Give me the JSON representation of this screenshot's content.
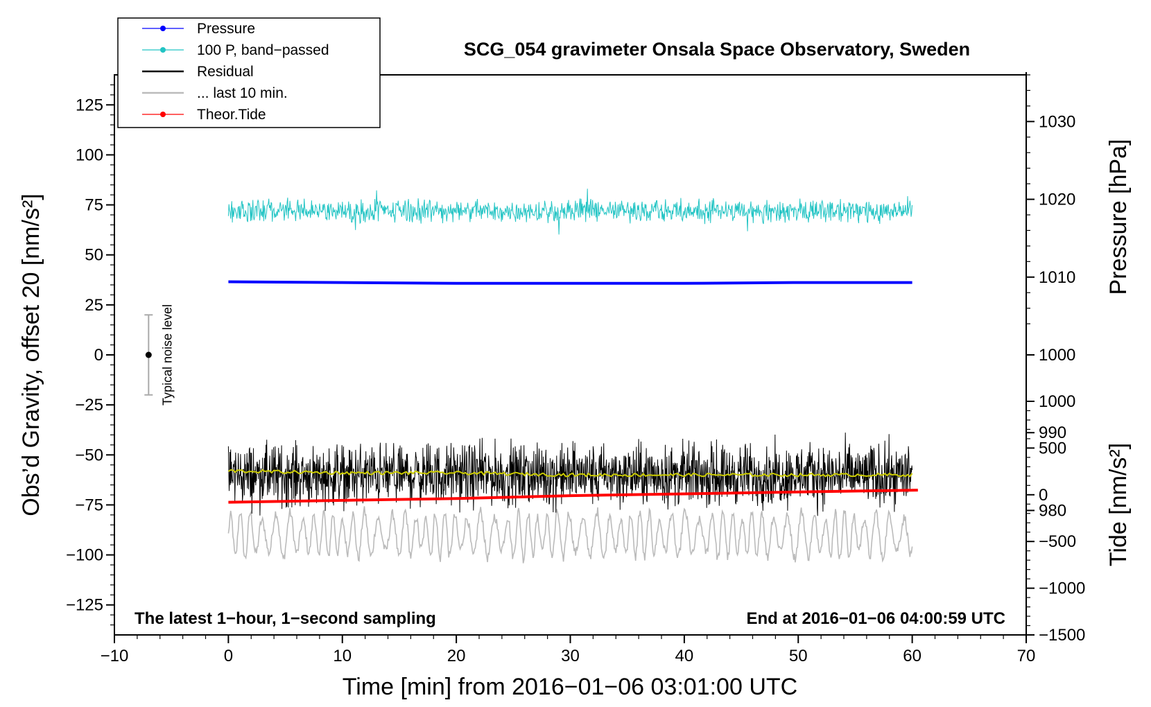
{
  "chart_data": {
    "type": "line",
    "title": "SCG_054 gravimeter Onsala Space Observatory, Sweden",
    "xlabel": "Time [min] from 2016−01−06 03:01:00 UTC",
    "ylabel_left": "Obs’d Gravity, offset 20 [nm/s²]",
    "ylabel_right_pressure": "Pressure [hPa]",
    "ylabel_right_tide": "Tide [nm/s²]",
    "xlim": [
      -10,
      70
    ],
    "ylim_left": [
      -140,
      140
    ],
    "ylim_pressure": [
      964,
      1036
    ],
    "ylim_tide": [
      -1500,
      1000
    ],
    "x_ticks": [
      -10,
      0,
      10,
      20,
      30,
      40,
      50,
      60,
      70
    ],
    "x_tick_labels": [
      "−10",
      "0",
      "10",
      "20",
      "30",
      "40",
      "50",
      "60",
      "70"
    ],
    "y_left_ticks": [
      125,
      100,
      75,
      50,
      25,
      0,
      -25,
      -50,
      -75,
      -100,
      -125
    ],
    "y_left_tick_labels": [
      "125",
      "100",
      "75",
      "50",
      "25",
      "0",
      "−25",
      "−50",
      "−75",
      "−100",
      "−125"
    ],
    "y_pressure_ticks": [
      1030,
      1020,
      1010,
      1000,
      990,
      980
    ],
    "y_pressure_tick_labels": [
      "1030",
      "1020",
      "1010",
      "1000",
      "990",
      "980"
    ],
    "y_tide_ticks": [
      1000,
      500,
      0,
      -500,
      -1000,
      -1500
    ],
    "y_tide_tick_labels": [
      "1000",
      "500",
      "0",
      "−500",
      "−1000",
      "−1500"
    ],
    "legend": [
      {
        "label": "Pressure",
        "color": "#0000ff",
        "marker": true
      },
      {
        "label": "100 P, band−passed",
        "color": "#22c4c4",
        "marker": true
      },
      {
        "label": "Residual",
        "color": "#000000",
        "marker": false
      },
      {
        "label": "... last 10 min.",
        "color": "#bbbbbb",
        "marker": false
      },
      {
        "label": "Theor.Tide",
        "color": "#ff0000",
        "marker": true
      }
    ],
    "series": [
      {
        "name": "Pressure",
        "axis": "pressure",
        "x": [
          0,
          10,
          20,
          30,
          40,
          50,
          60
        ],
        "values": [
          1009.4,
          1009.3,
          1009.2,
          1009.2,
          1009.2,
          1009.3,
          1009.3
        ]
      },
      {
        "name": "100 P, band−passed",
        "axis": "left",
        "x_range": [
          0,
          60
        ],
        "center": 72,
        "amplitude": 7
      },
      {
        "name": "Residual",
        "axis": "left",
        "x_range": [
          0,
          60
        ],
        "center": -60,
        "amplitude": 16
      },
      {
        "name": "Residual smoothed",
        "axis": "left",
        "color": "#cccc00",
        "x": [
          0,
          10,
          20,
          30,
          40,
          50,
          60
        ],
        "values": [
          -58,
          -59,
          -59,
          -60,
          -60,
          -60,
          -60
        ]
      },
      {
        "name": "... last 10 min.",
        "axis": "left",
        "x_range": [
          0,
          60
        ],
        "center": -90,
        "amplitude": 12
      },
      {
        "name": "Theor.Tide",
        "axis": "tide",
        "x": [
          0,
          10,
          20,
          30,
          40,
          50,
          60.5
        ],
        "values": [
          -80,
          -60,
          -40,
          -10,
          10,
          30,
          50
        ]
      }
    ],
    "noise_level": {
      "label": "Typical noise level",
      "x": -7,
      "center": 0,
      "range": [
        -20,
        20
      ]
    },
    "note_left": "The latest 1−hour, 1−second sampling",
    "note_right": "End at 2016−01−06 04:00:59 UTC"
  }
}
